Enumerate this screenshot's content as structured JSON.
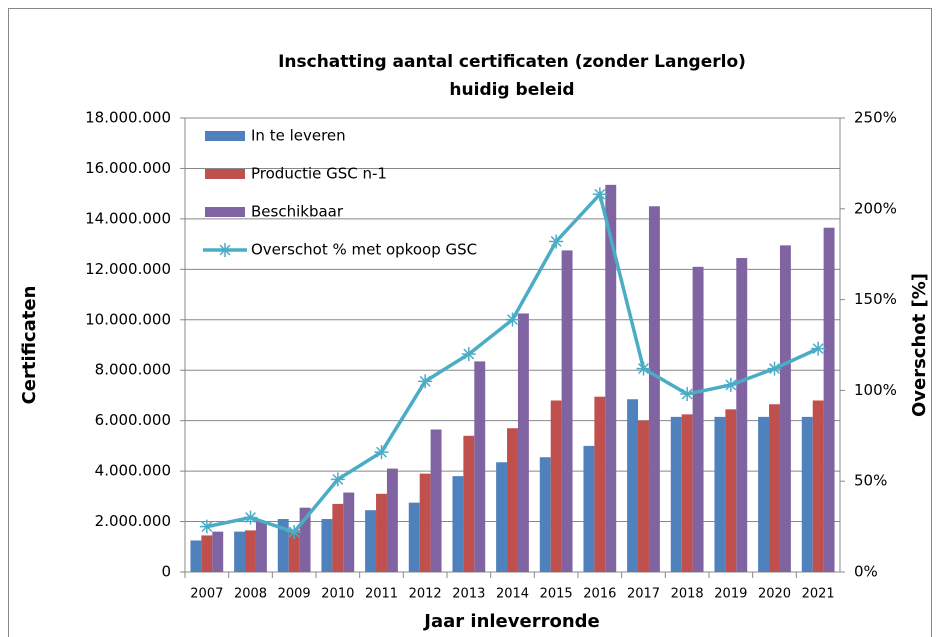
{
  "chart_data": {
    "type": "bar",
    "title": "Inschatting aantal certificaten (zonder Langerlo)",
    "subtitle": "huidig beleid",
    "x_label": "Jaar inleverronde",
    "y_label": "Certificaten",
    "y2_label": "Overschot [%]",
    "categories": [
      "2007",
      "2008",
      "2009",
      "2010",
      "2011",
      "2012",
      "2013",
      "2014",
      "2015",
      "2016",
      "2017",
      "2018",
      "2019",
      "2020",
      "2021"
    ],
    "series": [
      {
        "name": "In te leveren",
        "color": "#4f81bd",
        "values": [
          1250000,
          1600000,
          2100000,
          2100000,
          2450000,
          2750000,
          3800000,
          4350000,
          4550000,
          5000000,
          6850000,
          6150000,
          6150000,
          6150000,
          6150000
        ]
      },
      {
        "name": "Productie GSC n-1",
        "color": "#c0504d",
        "values": [
          1450000,
          1650000,
          1650000,
          2700000,
          3100000,
          3900000,
          5400000,
          5700000,
          6800000,
          6950000,
          6000000,
          6250000,
          6450000,
          6650000,
          6800000
        ]
      },
      {
        "name": "Beschikbaar",
        "color": "#8064a2",
        "values": [
          1600000,
          2000000,
          2550000,
          3150000,
          4100000,
          5650000,
          8350000,
          10250000,
          12750000,
          15350000,
          14500000,
          12100000,
          12450000,
          12950000,
          13650000
        ]
      },
      {
        "name": "Overschot % met opkoop GSC",
        "color": "#4bacc6",
        "type": "line",
        "axis": "y2",
        "values": [
          25,
          30,
          22,
          51,
          66,
          105,
          120,
          139,
          182,
          208,
          112,
          98,
          103,
          112,
          123
        ]
      }
    ],
    "ylim": [
      0,
      18000000
    ],
    "yticks": [
      {
        "value": 0,
        "label": "0"
      },
      {
        "value": 2000000,
        "label": "2.000.000"
      },
      {
        "value": 4000000,
        "label": "4.000.000"
      },
      {
        "value": 6000000,
        "label": "6.000.000"
      },
      {
        "value": 8000000,
        "label": "8.000.000"
      },
      {
        "value": 10000000,
        "label": "10.000.000"
      },
      {
        "value": 12000000,
        "label": "12.000.000"
      },
      {
        "value": 14000000,
        "label": "14.000.000"
      },
      {
        "value": 16000000,
        "label": "16.000.000"
      },
      {
        "value": 18000000,
        "label": "18.000.000"
      }
    ],
    "y2lim": [
      0,
      250
    ],
    "y2ticks": [
      {
        "value": 0,
        "label": "0%"
      },
      {
        "value": 50,
        "label": "50%"
      },
      {
        "value": 100,
        "label": "100%"
      },
      {
        "value": 150,
        "label": "150%"
      },
      {
        "value": 200,
        "label": "200%"
      },
      {
        "value": 250,
        "label": "250%"
      }
    ],
    "grid": true,
    "legend": "top-left"
  }
}
